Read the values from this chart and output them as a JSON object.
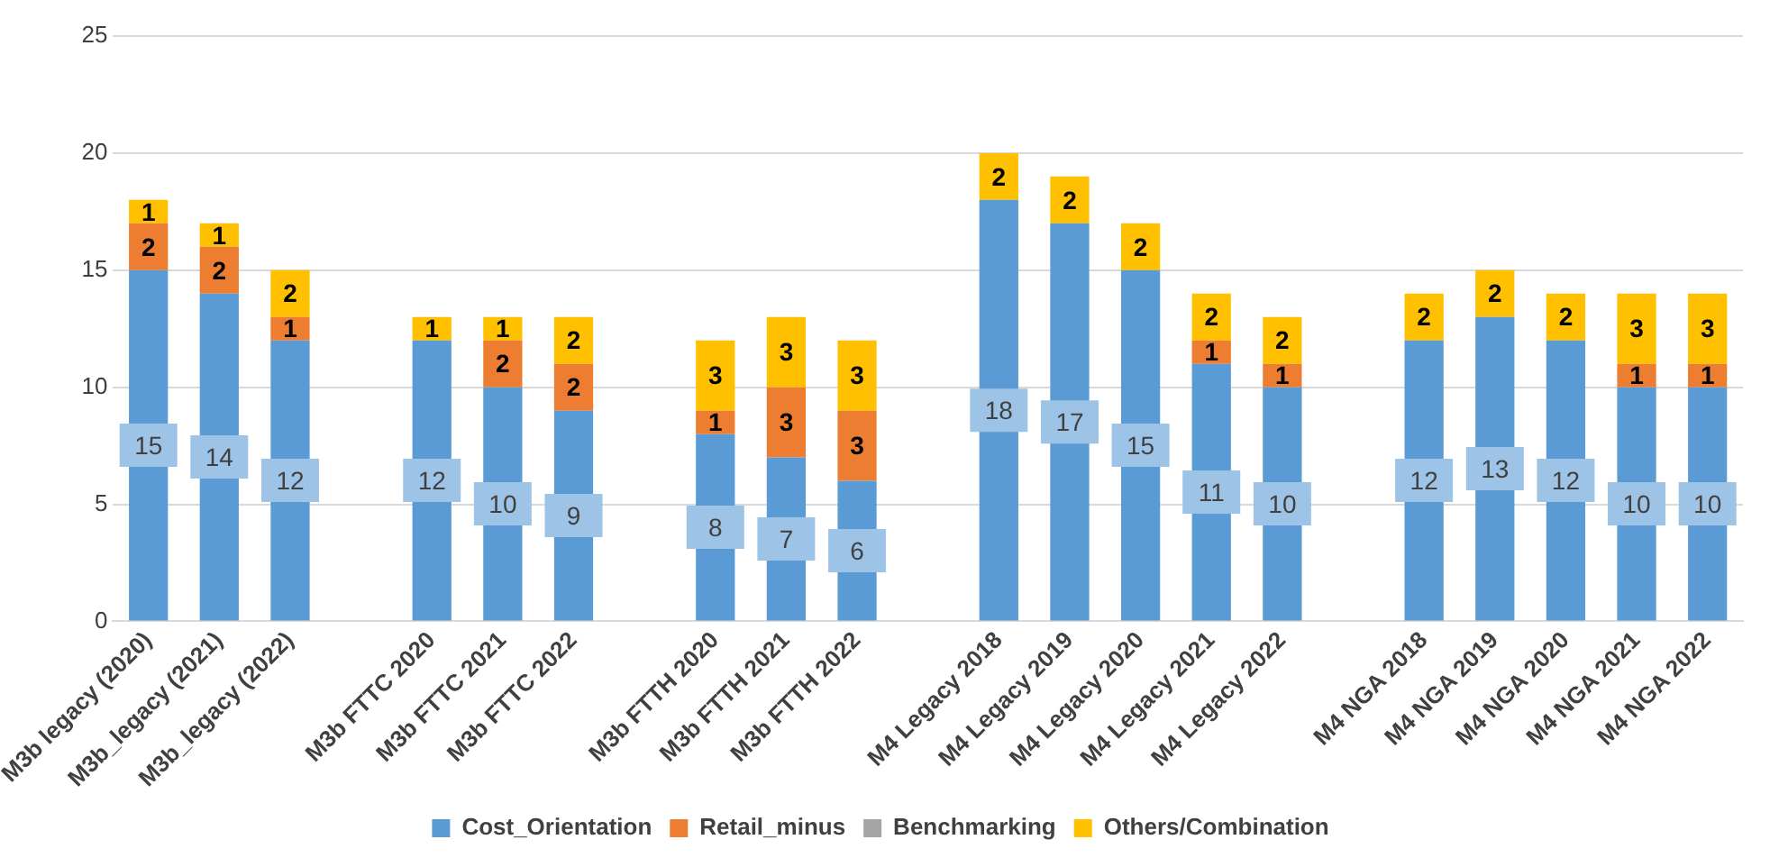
{
  "chart_data": {
    "type": "bar",
    "stacked": true,
    "data_labels": true,
    "grid": "y",
    "legend": "bottom",
    "categories": [
      "M3b legacy (2020)",
      "M3b_legacy (2021)",
      "M3b_legacy (2022)",
      null,
      "M3b FTTC 2020",
      "M3b FTTC 2021",
      "M3b FTTC 2022",
      null,
      "M3b FTTH 2020",
      "M3b FTTH 2021",
      "M3b FTTH 2022",
      null,
      "M4 Legacy 2018",
      "M4 Legacy 2019",
      "M4 Legacy 2020",
      "M4 Legacy 2021",
      "M4 Legacy 2022",
      null,
      "M4 NGA 2018",
      "M4 NGA 2019",
      "M4 NGA 2020",
      "M4 NGA 2021",
      "M4 NGA 2022"
    ],
    "ylim": [
      0,
      25
    ],
    "yticks": [
      0,
      5,
      10,
      15,
      20,
      25
    ],
    "series": [
      {
        "name": "Cost_Orientation",
        "color": "#5b9bd5",
        "values": [
          15,
          14,
          12,
          null,
          12,
          10,
          9,
          null,
          8,
          7,
          6,
          null,
          18,
          17,
          15,
          11,
          10,
          null,
          12,
          13,
          12,
          10,
          10
        ]
      },
      {
        "name": "Retail_minus",
        "color": "#ed7d31",
        "values": [
          2,
          2,
          1,
          null,
          null,
          2,
          2,
          null,
          1,
          3,
          3,
          null,
          null,
          null,
          null,
          1,
          1,
          null,
          null,
          null,
          null,
          1,
          1
        ]
      },
      {
        "name": "Benchmarking",
        "color": "#a5a5a5",
        "values": [
          null,
          null,
          null,
          null,
          null,
          null,
          null,
          null,
          null,
          null,
          null,
          null,
          null,
          null,
          null,
          null,
          null,
          null,
          null,
          null,
          null,
          null,
          null
        ]
      },
      {
        "name": "Others/Combination",
        "color": "#ffc000",
        "values": [
          1,
          1,
          2,
          null,
          1,
          1,
          2,
          null,
          3,
          3,
          3,
          null,
          2,
          2,
          2,
          2,
          2,
          null,
          2,
          2,
          2,
          3,
          3
        ]
      }
    ]
  }
}
